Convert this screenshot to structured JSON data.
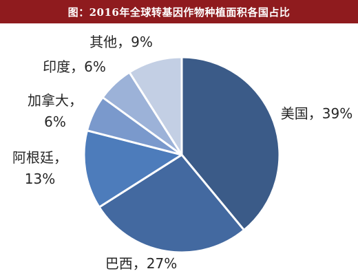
{
  "title": "图：2016年全球转基因作物种植面积各国占比",
  "colors": {
    "title_bar": "#8f1b1e",
    "title_text": "#ffffff",
    "label_text": "#262626",
    "slice_border": "#ffffff"
  },
  "chart_data": {
    "type": "pie",
    "title": "图：2016年全球转基因作物种植面积各国占比",
    "start": "12 o'clock",
    "direction": "clockwise",
    "slices": [
      {
        "name": "美国",
        "value": 39,
        "label": "39%",
        "color": "#3b5b88"
      },
      {
        "name": "巴西",
        "value": 27,
        "label": "27%",
        "color": "#4369a0"
      },
      {
        "name": "阿根廷",
        "value": 13,
        "label": "13%",
        "color": "#4d7cbb"
      },
      {
        "name": "加拿大",
        "value": 6,
        "label": "6%",
        "color": "#7a99cc"
      },
      {
        "name": "印度",
        "value": 6,
        "label": "6%",
        "color": "#9cb2d8"
      },
      {
        "name": "其他",
        "value": 9,
        "label": "9%",
        "color": "#c3cfe4"
      }
    ]
  }
}
